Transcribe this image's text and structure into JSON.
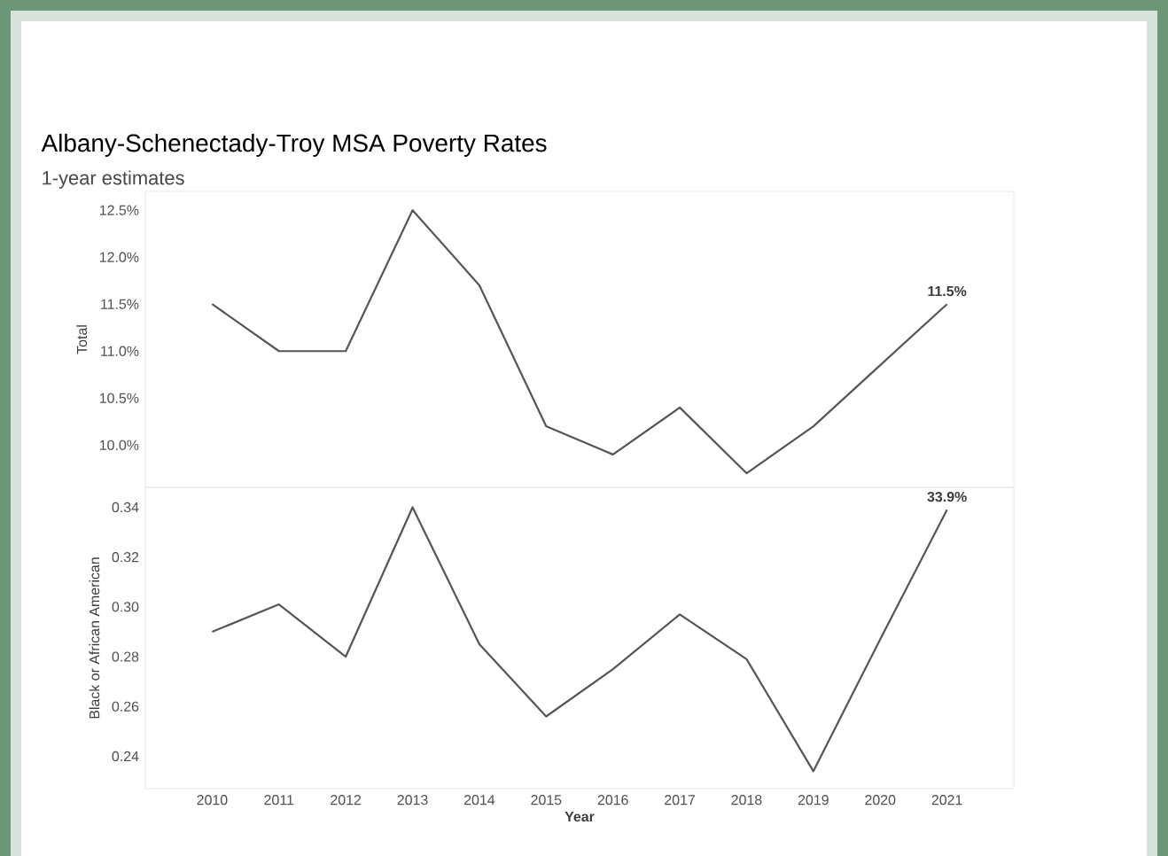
{
  "chart_data": [
    {
      "type": "line",
      "title": "Albany-Schenectady-Troy MSA Poverty Rates",
      "subtitle": "1-year estimates",
      "ylabel": "Total",
      "categories": [
        "2010",
        "2011",
        "2012",
        "2013",
        "2014",
        "2015",
        "2016",
        "2017",
        "2018",
        "2019",
        "2020",
        "2021"
      ],
      "series": [
        {
          "color": "#555555",
          "values": [
            11.5,
            11.0,
            11.0,
            12.5,
            11.7,
            10.2,
            9.9,
            10.4,
            9.7,
            10.2,
            10.85,
            11.5
          ],
          "value_labels": [
            null,
            null,
            null,
            null,
            null,
            null,
            null,
            null,
            null,
            null,
            null,
            "11.5%"
          ]
        }
      ],
      "ylim": [
        9.55,
        12.7
      ],
      "yticks": [
        {
          "value": 10.0,
          "label": "10.0%"
        },
        {
          "value": 10.5,
          "label": "10.5%"
        },
        {
          "value": 11.0,
          "label": "11.0%"
        },
        {
          "value": 11.5,
          "label": "11.5%"
        },
        {
          "value": 12.0,
          "label": "12.0%"
        },
        {
          "value": 12.5,
          "label": "12.5%"
        }
      ],
      "tick_labels": "y",
      "grid": false
    },
    {
      "type": "line",
      "xlabel": "Year",
      "ylabel": "Black or African American",
      "categories": [
        "2010",
        "2011",
        "2012",
        "2013",
        "2014",
        "2015",
        "2016",
        "2017",
        "2018",
        "2019",
        "2020",
        "2021"
      ],
      "series": [
        {
          "color": "#555555",
          "values": [
            0.29,
            0.301,
            0.28,
            0.34,
            0.285,
            0.256,
            0.275,
            0.297,
            0.279,
            0.234,
            0.287,
            0.339
          ],
          "value_labels": [
            null,
            null,
            null,
            null,
            null,
            null,
            null,
            null,
            null,
            null,
            null,
            "33.9%"
          ]
        }
      ],
      "ylim": [
        0.227,
        0.348
      ],
      "yticks": [
        {
          "value": 0.24,
          "label": "0.24"
        },
        {
          "value": 0.26,
          "label": "0.26"
        },
        {
          "value": 0.28,
          "label": "0.28"
        },
        {
          "value": 0.3,
          "label": "0.30"
        },
        {
          "value": 0.32,
          "label": "0.32"
        },
        {
          "value": 0.34,
          "label": "0.34"
        }
      ],
      "grid": false
    }
  ]
}
